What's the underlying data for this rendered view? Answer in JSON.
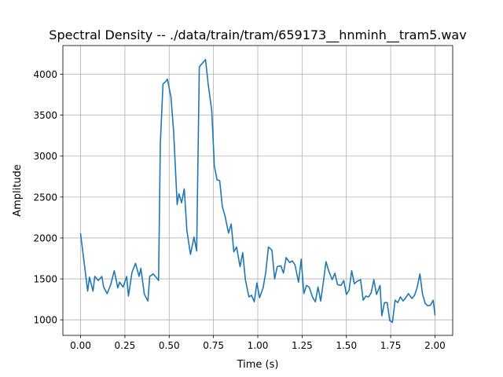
{
  "chart_data": {
    "type": "line",
    "title": "Spectral Density -- ./data/train/tram/659173__hnminh__tram5.wav",
    "xlabel": "Time (s)",
    "ylabel": "Amplitude",
    "xlim": [
      -0.1,
      2.1
    ],
    "ylim": [
      810,
      4350
    ],
    "grid": true,
    "line_color": "#1f77b4",
    "xticks": [
      0.0,
      0.25,
      0.5,
      0.75,
      1.0,
      1.25,
      1.5,
      1.75,
      2.0
    ],
    "xtick_labels": [
      "0.00",
      "0.25",
      "0.50",
      "0.75",
      "1.00",
      "1.25",
      "1.50",
      "1.75",
      "2.00"
    ],
    "yticks": [
      1000,
      1500,
      2000,
      2500,
      3000,
      3500,
      4000
    ],
    "ytick_labels": [
      "1000",
      "1500",
      "2000",
      "2500",
      "3000",
      "3500",
      "4000"
    ],
    "series": [
      {
        "points": [
          [
            0.0,
            2050
          ],
          [
            0.02,
            1700
          ],
          [
            0.04,
            1350
          ],
          [
            0.05,
            1520
          ],
          [
            0.07,
            1350
          ],
          [
            0.08,
            1530
          ],
          [
            0.1,
            1480
          ],
          [
            0.12,
            1530
          ],
          [
            0.13,
            1400
          ],
          [
            0.15,
            1320
          ],
          [
            0.17,
            1430
          ],
          [
            0.19,
            1600
          ],
          [
            0.21,
            1390
          ],
          [
            0.22,
            1460
          ],
          [
            0.24,
            1400
          ],
          [
            0.26,
            1530
          ],
          [
            0.27,
            1290
          ],
          [
            0.29,
            1580
          ],
          [
            0.31,
            1690
          ],
          [
            0.33,
            1530
          ],
          [
            0.34,
            1630
          ],
          [
            0.36,
            1310
          ],
          [
            0.38,
            1230
          ],
          [
            0.39,
            1530
          ],
          [
            0.41,
            1560
          ],
          [
            0.43,
            1510
          ],
          [
            0.44,
            1480
          ],
          [
            0.45,
            3150
          ],
          [
            0.465,
            3880
          ],
          [
            0.48,
            3910
          ],
          [
            0.49,
            3940
          ],
          [
            0.51,
            3720
          ],
          [
            0.525,
            3300
          ],
          [
            0.545,
            2410
          ],
          [
            0.555,
            2540
          ],
          [
            0.57,
            2430
          ],
          [
            0.585,
            2600
          ],
          [
            0.6,
            2090
          ],
          [
            0.62,
            1800
          ],
          [
            0.64,
            2010
          ],
          [
            0.655,
            1840
          ],
          [
            0.67,
            4090
          ],
          [
            0.69,
            4140
          ],
          [
            0.705,
            4180
          ],
          [
            0.72,
            3880
          ],
          [
            0.74,
            3560
          ],
          [
            0.755,
            2880
          ],
          [
            0.77,
            2710
          ],
          [
            0.785,
            2700
          ],
          [
            0.8,
            2380
          ],
          [
            0.815,
            2270
          ],
          [
            0.835,
            2060
          ],
          [
            0.85,
            2170
          ],
          [
            0.865,
            1830
          ],
          [
            0.88,
            1890
          ],
          [
            0.9,
            1650
          ],
          [
            0.915,
            1820
          ],
          [
            0.93,
            1490
          ],
          [
            0.95,
            1280
          ],
          [
            0.965,
            1300
          ],
          [
            0.98,
            1220
          ],
          [
            0.995,
            1450
          ],
          [
            1.01,
            1270
          ],
          [
            1.03,
            1390
          ],
          [
            1.045,
            1580
          ],
          [
            1.06,
            1890
          ],
          [
            1.08,
            1850
          ],
          [
            1.095,
            1500
          ],
          [
            1.11,
            1650
          ],
          [
            1.13,
            1660
          ],
          [
            1.145,
            1570
          ],
          [
            1.16,
            1760
          ],
          [
            1.18,
            1700
          ],
          [
            1.195,
            1720
          ],
          [
            1.21,
            1670
          ],
          [
            1.23,
            1460
          ],
          [
            1.245,
            1740
          ],
          [
            1.26,
            1320
          ],
          [
            1.275,
            1420
          ],
          [
            1.29,
            1400
          ],
          [
            1.31,
            1270
          ],
          [
            1.325,
            1220
          ],
          [
            1.34,
            1400
          ],
          [
            1.355,
            1230
          ],
          [
            1.37,
            1460
          ],
          [
            1.385,
            1710
          ],
          [
            1.4,
            1600
          ],
          [
            1.42,
            1490
          ],
          [
            1.435,
            1570
          ],
          [
            1.45,
            1430
          ],
          [
            1.47,
            1420
          ],
          [
            1.485,
            1480
          ],
          [
            1.5,
            1310
          ],
          [
            1.515,
            1360
          ],
          [
            1.53,
            1600
          ],
          [
            1.545,
            1440
          ],
          [
            1.56,
            1470
          ],
          [
            1.58,
            1490
          ],
          [
            1.595,
            1240
          ],
          [
            1.61,
            1290
          ],
          [
            1.625,
            1280
          ],
          [
            1.64,
            1330
          ],
          [
            1.655,
            1490
          ],
          [
            1.67,
            1310
          ],
          [
            1.69,
            1420
          ],
          [
            1.7,
            1050
          ],
          [
            1.715,
            1210
          ],
          [
            1.73,
            1210
          ],
          [
            1.745,
            990
          ],
          [
            1.76,
            970
          ],
          [
            1.775,
            1240
          ],
          [
            1.79,
            1210
          ],
          [
            1.805,
            1280
          ],
          [
            1.82,
            1230
          ],
          [
            1.835,
            1270
          ],
          [
            1.85,
            1320
          ],
          [
            1.87,
            1260
          ],
          [
            1.885,
            1300
          ],
          [
            1.9,
            1400
          ],
          [
            1.915,
            1560
          ],
          [
            1.93,
            1310
          ],
          [
            1.945,
            1200
          ],
          [
            1.96,
            1170
          ],
          [
            1.975,
            1180
          ],
          [
            1.99,
            1240
          ],
          [
            2.0,
            1060
          ]
        ]
      }
    ]
  }
}
